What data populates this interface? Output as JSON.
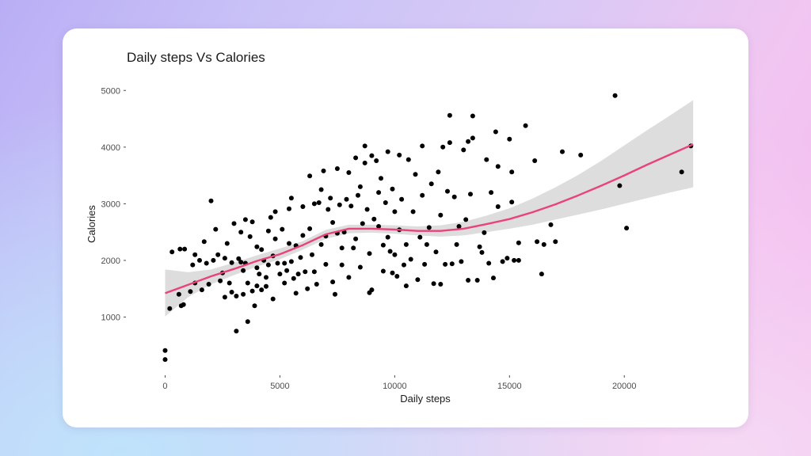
{
  "chart_data": {
    "type": "scatter",
    "title": "Daily steps Vs Calories",
    "xlabel": "Daily steps",
    "ylabel": "Calories",
    "xlim": [
      -500,
      23200
    ],
    "ylim": [
      0,
      5200
    ],
    "xticks": [
      0,
      5000,
      10000,
      15000,
      20000
    ],
    "xtick_labels": [
      "0",
      "5000",
      "10000",
      "15000",
      "20000"
    ],
    "yticks": [
      1000,
      2000,
      3000,
      4000,
      5000
    ],
    "ytick_labels": [
      "1000",
      "2000",
      "3000",
      "4000",
      "5000"
    ],
    "grid": false,
    "colors": {
      "points": "#000000",
      "smooth_line": "#e8437a",
      "confidence_band": "#d9d9d9"
    },
    "series": [
      {
        "kind": "points",
        "points": [
          [
            0,
            250
          ],
          [
            0,
            410
          ],
          [
            200,
            1150
          ],
          [
            300,
            2150
          ],
          [
            600,
            1400
          ],
          [
            700,
            1200
          ],
          [
            650,
            2200
          ],
          [
            800,
            1220
          ],
          [
            850,
            2200
          ],
          [
            1100,
            1450
          ],
          [
            1200,
            1920
          ],
          [
            1300,
            2100
          ],
          [
            1300,
            1600
          ],
          [
            1500,
            2000
          ],
          [
            1600,
            1480
          ],
          [
            1700,
            2330
          ],
          [
            1800,
            1950
          ],
          [
            1900,
            1580
          ],
          [
            2000,
            3050
          ],
          [
            2100,
            2000
          ],
          [
            2200,
            2550
          ],
          [
            2300,
            2100
          ],
          [
            2400,
            1640
          ],
          [
            2500,
            1780
          ],
          [
            2600,
            1350
          ],
          [
            2600,
            2040
          ],
          [
            2700,
            2300
          ],
          [
            2800,
            1600
          ],
          [
            2900,
            1440
          ],
          [
            2900,
            1960
          ],
          [
            3000,
            2650
          ],
          [
            3100,
            1370
          ],
          [
            3100,
            750
          ],
          [
            3200,
            2030
          ],
          [
            3300,
            2500
          ],
          [
            3300,
            1970
          ],
          [
            3400,
            1400
          ],
          [
            3400,
            1820
          ],
          [
            3500,
            1950
          ],
          [
            3500,
            2720
          ],
          [
            3600,
            920
          ],
          [
            3600,
            1600
          ],
          [
            3700,
            2420
          ],
          [
            3800,
            1460
          ],
          [
            3800,
            2680
          ],
          [
            3900,
            1200
          ],
          [
            4000,
            1550
          ],
          [
            4000,
            1870
          ],
          [
            4000,
            2240
          ],
          [
            4100,
            1760
          ],
          [
            4200,
            2190
          ],
          [
            4200,
            1480
          ],
          [
            4300,
            2000
          ],
          [
            4400,
            1700
          ],
          [
            4400,
            1540
          ],
          [
            4500,
            2520
          ],
          [
            4500,
            1920
          ],
          [
            4600,
            2760
          ],
          [
            4700,
            1320
          ],
          [
            4700,
            2080
          ],
          [
            4800,
            2860
          ],
          [
            4800,
            2380
          ],
          [
            4900,
            1950
          ],
          [
            5000,
            1760
          ],
          [
            5100,
            2550
          ],
          [
            5200,
            1950
          ],
          [
            5200,
            1600
          ],
          [
            5300,
            1820
          ],
          [
            5400,
            2300
          ],
          [
            5400,
            2910
          ],
          [
            5500,
            3100
          ],
          [
            5500,
            1980
          ],
          [
            5600,
            1680
          ],
          [
            5700,
            2260
          ],
          [
            5700,
            1420
          ],
          [
            5800,
            1760
          ],
          [
            5900,
            2050
          ],
          [
            6000,
            2950
          ],
          [
            6000,
            2440
          ],
          [
            6100,
            1800
          ],
          [
            6200,
            1500
          ],
          [
            6300,
            2560
          ],
          [
            6300,
            3490
          ],
          [
            6400,
            2100
          ],
          [
            6500,
            3000
          ],
          [
            6500,
            1800
          ],
          [
            6600,
            1580
          ],
          [
            6700,
            3020
          ],
          [
            6800,
            3250
          ],
          [
            6800,
            2280
          ],
          [
            6900,
            3580
          ],
          [
            7000,
            2430
          ],
          [
            7000,
            1930
          ],
          [
            7100,
            2900
          ],
          [
            7200,
            3100
          ],
          [
            7300,
            1620
          ],
          [
            7300,
            2670
          ],
          [
            7400,
            1400
          ],
          [
            7500,
            3620
          ],
          [
            7500,
            2480
          ],
          [
            7600,
            2980
          ],
          [
            7700,
            1920
          ],
          [
            7700,
            2220
          ],
          [
            7800,
            2500
          ],
          [
            7900,
            3080
          ],
          [
            8000,
            3550
          ],
          [
            8000,
            1700
          ],
          [
            8100,
            2960
          ],
          [
            8200,
            2220
          ],
          [
            8300,
            3810
          ],
          [
            8300,
            2380
          ],
          [
            8400,
            3150
          ],
          [
            8500,
            1880
          ],
          [
            8500,
            3300
          ],
          [
            8600,
            2650
          ],
          [
            8700,
            3720
          ],
          [
            8700,
            4020
          ],
          [
            8800,
            2900
          ],
          [
            8900,
            2120
          ],
          [
            8900,
            1430
          ],
          [
            9000,
            3850
          ],
          [
            9000,
            1480
          ],
          [
            9100,
            2730
          ],
          [
            9200,
            3760
          ],
          [
            9300,
            3200
          ],
          [
            9300,
            2600
          ],
          [
            9400,
            3450
          ],
          [
            9500,
            2270
          ],
          [
            9500,
            1810
          ],
          [
            9600,
            3020
          ],
          [
            9700,
            2410
          ],
          [
            9700,
            3920
          ],
          [
            9800,
            2160
          ],
          [
            9900,
            1780
          ],
          [
            9900,
            3260
          ],
          [
            10000,
            2860
          ],
          [
            10000,
            2100
          ],
          [
            10100,
            1720
          ],
          [
            10200,
            3860
          ],
          [
            10200,
            2540
          ],
          [
            10300,
            3080
          ],
          [
            10400,
            1920
          ],
          [
            10500,
            2280
          ],
          [
            10500,
            1550
          ],
          [
            10600,
            3780
          ],
          [
            10700,
            2020
          ],
          [
            10800,
            2860
          ],
          [
            10900,
            3520
          ],
          [
            11000,
            1660
          ],
          [
            11100,
            2410
          ],
          [
            11200,
            4020
          ],
          [
            11200,
            3150
          ],
          [
            11300,
            1930
          ],
          [
            11400,
            2280
          ],
          [
            11500,
            2580
          ],
          [
            11600,
            3350
          ],
          [
            11700,
            1590
          ],
          [
            11800,
            2150
          ],
          [
            11900,
            3560
          ],
          [
            12000,
            1580
          ],
          [
            12000,
            2800
          ],
          [
            12100,
            4000
          ],
          [
            12200,
            1930
          ],
          [
            12300,
            3220
          ],
          [
            12400,
            4080
          ],
          [
            12400,
            4560
          ],
          [
            12500,
            1940
          ],
          [
            12600,
            3120
          ],
          [
            12700,
            2280
          ],
          [
            12800,
            2600
          ],
          [
            12900,
            1980
          ],
          [
            13000,
            3950
          ],
          [
            13100,
            2720
          ],
          [
            13200,
            1650
          ],
          [
            13200,
            4100
          ],
          [
            13300,
            3170
          ],
          [
            13400,
            4160
          ],
          [
            13400,
            4550
          ],
          [
            13600,
            1650
          ],
          [
            13700,
            2240
          ],
          [
            13800,
            2140
          ],
          [
            13900,
            2490
          ],
          [
            14000,
            3780
          ],
          [
            14100,
            1950
          ],
          [
            14200,
            3200
          ],
          [
            14300,
            1690
          ],
          [
            14400,
            4270
          ],
          [
            14500,
            2950
          ],
          [
            14500,
            3660
          ],
          [
            14700,
            1980
          ],
          [
            14900,
            2040
          ],
          [
            15000,
            4140
          ],
          [
            15100,
            3560
          ],
          [
            15100,
            3030
          ],
          [
            15200,
            2000
          ],
          [
            15400,
            2310
          ],
          [
            15400,
            2000
          ],
          [
            15700,
            4380
          ],
          [
            16100,
            3760
          ],
          [
            16200,
            2330
          ],
          [
            16400,
            1760
          ],
          [
            16500,
            2280
          ],
          [
            16800,
            2630
          ],
          [
            17000,
            2330
          ],
          [
            17300,
            3920
          ],
          [
            18100,
            3860
          ],
          [
            19600,
            4910
          ],
          [
            19800,
            3320
          ],
          [
            20100,
            2570
          ],
          [
            22500,
            3560
          ],
          [
            22900,
            4020
          ]
        ]
      },
      {
        "kind": "smooth",
        "x": [
          0,
          1000,
          2000,
          3000,
          4000,
          5000,
          6000,
          7000,
          8000,
          9000,
          10000,
          11000,
          12000,
          13000,
          14000,
          15000,
          16000,
          17000,
          18000,
          19000,
          20000,
          21000,
          22000,
          23000
        ],
        "y": [
          1420,
          1570,
          1720,
          1850,
          1990,
          2110,
          2270,
          2460,
          2560,
          2560,
          2545,
          2520,
          2520,
          2560,
          2640,
          2730,
          2850,
          2990,
          3150,
          3320,
          3500,
          3690,
          3870,
          4050
        ],
        "band_upper": [
          1840,
          1790,
          1840,
          1960,
          2090,
          2210,
          2340,
          2540,
          2630,
          2630,
          2620,
          2600,
          2620,
          2680,
          2790,
          2920,
          3090,
          3290,
          3510,
          3760,
          4030,
          4300,
          4560,
          4830
        ],
        "band_lower": [
          1010,
          1350,
          1580,
          1740,
          1890,
          2020,
          2190,
          2380,
          2480,
          2490,
          2470,
          2440,
          2420,
          2440,
          2500,
          2560,
          2630,
          2720,
          2810,
          2900,
          3000,
          3100,
          3200,
          3290
        ]
      }
    ]
  }
}
